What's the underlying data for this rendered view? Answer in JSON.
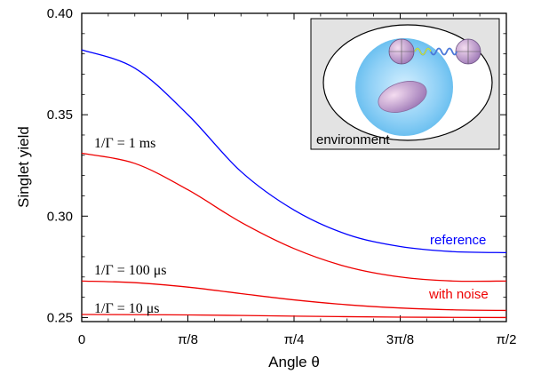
{
  "chart_data": {
    "type": "line",
    "xlabel": "Angle θ",
    "ylabel": "Singlet yield",
    "xlim": [
      0,
      1.5708
    ],
    "ylim": [
      0.248,
      0.4
    ],
    "x_ticks": [
      {
        "value": 0,
        "label": "0"
      },
      {
        "value": 0.3927,
        "label": "π/8"
      },
      {
        "value": 0.7854,
        "label": "π/4"
      },
      {
        "value": 1.1781,
        "label": "3π/8"
      },
      {
        "value": 1.5708,
        "label": "π/2"
      }
    ],
    "y_ticks": [
      {
        "value": 0.25,
        "label": "0.25"
      },
      {
        "value": 0.3,
        "label": "0.30"
      },
      {
        "value": 0.35,
        "label": "0.35"
      },
      {
        "value": 0.4,
        "label": "0.40"
      }
    ],
    "series": [
      {
        "name": "reference",
        "color": "#0000ff",
        "x": [
          0,
          0.1963,
          0.3927,
          0.589,
          0.7854,
          0.9817,
          1.1781,
          1.3744,
          1.5708
        ],
        "y": [
          0.382,
          0.373,
          0.35,
          0.322,
          0.303,
          0.291,
          0.285,
          0.2825,
          0.282
        ]
      },
      {
        "name": "1/Γ = 1 ms",
        "color": "#ee0000",
        "x": [
          0,
          0.1963,
          0.3927,
          0.589,
          0.7854,
          0.9817,
          1.1781,
          1.3744,
          1.5708
        ],
        "y": [
          0.331,
          0.326,
          0.313,
          0.297,
          0.284,
          0.275,
          0.27,
          0.268,
          0.268
        ]
      },
      {
        "name": "1/Γ = 100 μs",
        "color": "#ee0000",
        "x": [
          0,
          0.1963,
          0.3927,
          0.589,
          0.7854,
          0.9817,
          1.1781,
          1.3744,
          1.5708
        ],
        "y": [
          0.268,
          0.2672,
          0.265,
          0.2618,
          0.2587,
          0.2563,
          0.2547,
          0.2538,
          0.2535
        ]
      },
      {
        "name": "1/Γ = 10 μs",
        "color": "#ee0000",
        "x": [
          0,
          0.3927,
          0.7854,
          1.1781,
          1.5708
        ],
        "y": [
          0.2515,
          0.2513,
          0.2507,
          0.2502,
          0.25
        ]
      }
    ],
    "annotations": {
      "ref_label": "reference",
      "noise_label": "with noise",
      "curve_1ms": "1/Γ = 1 ms",
      "curve_100us": "1/Γ = 100 μs",
      "curve_10us": "1/Γ = 10 μs"
    },
    "inset": {
      "label": "environment"
    },
    "grid": false
  }
}
